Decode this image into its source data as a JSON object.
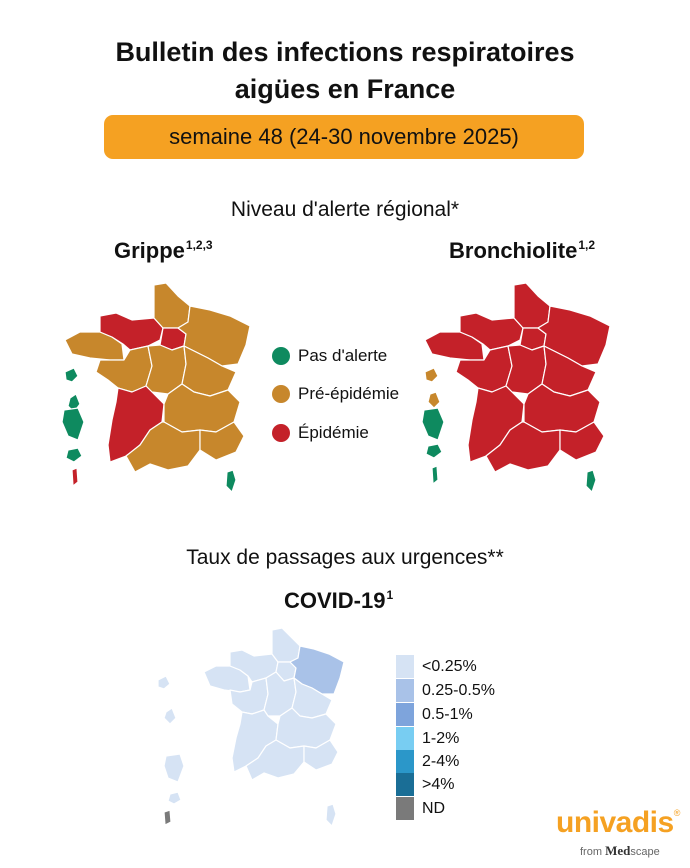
{
  "header": {
    "title_line1": "Bulletin des infections respiratoires",
    "title_line2": "aigües en France",
    "week": "semaine 48 (24-30 novembre 2025)"
  },
  "regional_alert": {
    "heading": "Niveau d'alerte régional*",
    "grippe": {
      "title": "Grippe",
      "refs": "1,2,3"
    },
    "bronchiolite": {
      "title": "Bronchiolite",
      "refs": "1,2"
    },
    "legend": [
      {
        "label": "Pas d'alerte",
        "color": "#0e8a5f"
      },
      {
        "label": "Pré-épidémie",
        "color": "#c7872c"
      },
      {
        "label": "Épidémie",
        "color": "#c42129"
      }
    ],
    "region_status": {
      "grippe": {
        "hauts_de_france": "Pré-épidémie",
        "normandie": "Épidémie",
        "ile_de_france": "Épidémie",
        "grand_est": "Pré-épidémie",
        "bretagne": "Pré-épidémie",
        "pays_de_la_loire": "Pré-épidémie",
        "centre_val_de_loire": "Pré-épidémie",
        "bourgogne_franche_comte": "Pré-épidémie",
        "nouvelle_aquitaine": "Épidémie",
        "auvergne_rhone_alpes": "Pré-épidémie",
        "occitanie": "Pré-épidémie",
        "provence_alpes_cote_dazur": "Pré-épidémie",
        "corse": "Pas d'alerte",
        "guadeloupe": "Pas d'alerte",
        "martinique": "Pas d'alerte",
        "guyane": "Pas d'alerte",
        "la_reunion": "Pas d'alerte",
        "mayotte": "Épidémie"
      },
      "bronchiolite": {
        "metropole": "Épidémie",
        "guadeloupe": "Pré-épidémie",
        "martinique": "Pré-épidémie",
        "guyane": "Pas d'alerte",
        "la_reunion": "Pas d'alerte",
        "mayotte": "Pas d'alerte",
        "corse": "Pas d'alerte"
      }
    }
  },
  "urgences": {
    "heading": "Taux de passages aux urgences**",
    "covid": {
      "title": "COVID-19",
      "refs": "1"
    },
    "legend": [
      {
        "label": "<0.25%",
        "color": "#d6e3f4"
      },
      {
        "label": "0.25-0.5%",
        "color": "#a9c2e8"
      },
      {
        "label": "0.5-1%",
        "color": "#7ea4dc"
      },
      {
        "label": "1-2%",
        "color": "#78cdf2"
      },
      {
        "label": "2-4%",
        "color": "#2b97c9"
      },
      {
        "label": ">4%",
        "color": "#1a6e96"
      },
      {
        "label": "ND",
        "color": "#7a7a7a"
      }
    ],
    "region_class": {
      "grand_est": "0.25-0.5%",
      "other_regions": "<0.25%",
      "mayotte": "ND"
    }
  },
  "brand": {
    "name": "univadis",
    "registered": "®",
    "from": "from",
    "partner_a": "Med",
    "partner_b": "scape"
  }
}
